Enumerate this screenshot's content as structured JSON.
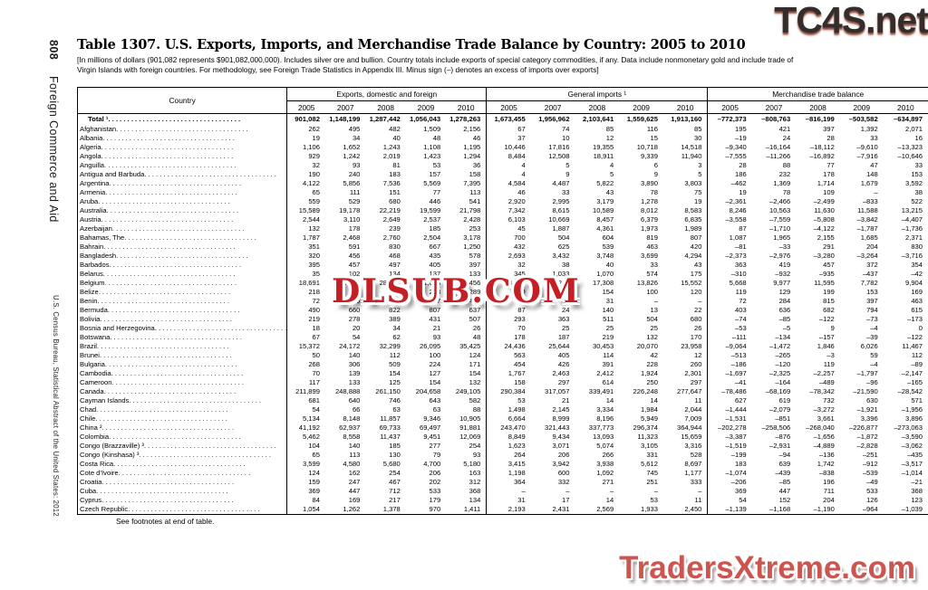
{
  "sidebar": {
    "page_number": "808",
    "section": "Foreign Commerce and Aid",
    "source": "U.S. Census Bureau, Statistical Abstract of the United States: 2012"
  },
  "title": "Table 1307. U.S. Exports, Imports, and Merchandise Trade Balance by Country: 2005 to 2010",
  "note_line1": "[In millions of dollars (901,082 represents $901,082,000,000). Includes silver ore and bullion. Country totals include exports of special category commodities, if any. Data include nonmonetary gold and include trade of",
  "note_line2": "Virgin Islands with foreign countries. For methodology, see Foreign Trade Statistics in Appendix III. Minus sign (–) denotes an excess of imports over exports]",
  "footer": "See footnotes at end of table.",
  "watermarks": {
    "top": "TC4S.net",
    "middle": "DLSUB.COM",
    "bottom": "TradersXtreme.com",
    "top_color": "#332d2b",
    "middle_color": "#c41f25",
    "bottom_color": "#cd554f"
  },
  "table": {
    "country_header": "Country",
    "groups": [
      "Exports, domestic and foreign",
      "General imports ¹",
      "Merchandise trade balance"
    ],
    "years": [
      "2005",
      "2007",
      "2008",
      "2009",
      "2010"
    ],
    "rows": [
      {
        "c": "Total ¹",
        "b": true,
        "e": [
          "901,082",
          "1,148,199",
          "1,287,442",
          "1,056,043",
          "1,278,263"
        ],
        "i": [
          "1,673,455",
          "1,956,962",
          "2,103,641",
          "1,559,625",
          "1,913,160"
        ],
        "m": [
          "–772,373",
          "–808,763",
          "–816,199",
          "–503,582",
          "–634,897"
        ]
      },
      {
        "c": "Afghanistan",
        "e": [
          "262",
          "495",
          "482",
          "1,509",
          "2,156"
        ],
        "i": [
          "67",
          "74",
          "85",
          "116",
          "85"
        ],
        "m": [
          "195",
          "421",
          "397",
          "1,392",
          "2,071"
        ]
      },
      {
        "c": "Albania",
        "e": [
          "19",
          "34",
          "40",
          "48",
          "46"
        ],
        "i": [
          "37",
          "10",
          "12",
          "15",
          "30"
        ],
        "m": [
          "–19",
          "24",
          "28",
          "33",
          "16"
        ]
      },
      {
        "c": "Algeria",
        "e": [
          "1,106",
          "1,652",
          "1,243",
          "1,108",
          "1,195"
        ],
        "i": [
          "10,446",
          "17,816",
          "19,355",
          "10,718",
          "14,518"
        ],
        "m": [
          "–9,340",
          "–16,164",
          "–18,112",
          "–9,610",
          "–13,323"
        ]
      },
      {
        "c": "Angola",
        "e": [
          "929",
          "1,242",
          "2,019",
          "1,423",
          "1,294"
        ],
        "i": [
          "8,484",
          "12,508",
          "18,911",
          "9,339",
          "11,940"
        ],
        "m": [
          "–7,555",
          "–11,266",
          "–16,892",
          "–7,916",
          "–10,646"
        ]
      },
      {
        "c": "Anguilla",
        "e": [
          "32",
          "93",
          "81",
          "53",
          "36"
        ],
        "i": [
          "4",
          "5",
          "4",
          "6",
          "3"
        ],
        "m": [
          "28",
          "88",
          "77",
          "47",
          "33"
        ]
      },
      {
        "c": "Antigua and Barbuda",
        "e": [
          "190",
          "240",
          "183",
          "157",
          "158"
        ],
        "i": [
          "4",
          "9",
          "5",
          "9",
          "5"
        ],
        "m": [
          "186",
          "232",
          "178",
          "148",
          "153"
        ]
      },
      {
        "c": "Argentina",
        "e": [
          "4,122",
          "5,856",
          "7,536",
          "5,569",
          "7,395"
        ],
        "i": [
          "4,584",
          "4,487",
          "5,822",
          "3,890",
          "3,803"
        ],
        "m": [
          "–462",
          "1,369",
          "1,714",
          "1,679",
          "3,592"
        ]
      },
      {
        "c": "Armenia",
        "e": [
          "65",
          "111",
          "151",
          "77",
          "113"
        ],
        "i": [
          "46",
          "33",
          "43",
          "78",
          "75"
        ],
        "m": [
          "19",
          "78",
          "109",
          "–",
          "38"
        ]
      },
      {
        "c": "Aruba",
        "e": [
          "559",
          "529",
          "680",
          "446",
          "541"
        ],
        "i": [
          "2,920",
          "2,995",
          "3,179",
          "1,278",
          "19"
        ],
        "m": [
          "–2,361",
          "–2,466",
          "–2,499",
          "–833",
          "522"
        ]
      },
      {
        "c": "Australia",
        "e": [
          "15,589",
          "19,178",
          "22,219",
          "19,599",
          "21,798"
        ],
        "i": [
          "7,342",
          "8,615",
          "10,589",
          "8,012",
          "8,583"
        ],
        "m": [
          "8,246",
          "10,563",
          "11,630",
          "11,588",
          "13,215"
        ]
      },
      {
        "c": "Austria",
        "e": [
          "2,544",
          "3,110",
          "2,649",
          "2,537",
          "2,428"
        ],
        "i": [
          "6,103",
          "10,669",
          "8,457",
          "6,379",
          "6,835"
        ],
        "m": [
          "–3,558",
          "–7,559",
          "–5,808",
          "–3,842",
          "–4,407"
        ]
      },
      {
        "c": "Azerbaijan",
        "e": [
          "132",
          "178",
          "239",
          "185",
          "253"
        ],
        "i": [
          "45",
          "1,887",
          "4,361",
          "1,973",
          "1,989"
        ],
        "m": [
          "87",
          "–1,710",
          "–4,122",
          "–1,787",
          "–1,736"
        ]
      },
      {
        "c": "Bahamas, The",
        "e": [
          "1,787",
          "2,468",
          "2,760",
          "2,504",
          "3,178"
        ],
        "i": [
          "700",
          "504",
          "604",
          "819",
          "807"
        ],
        "m": [
          "1,087",
          "1,965",
          "2,155",
          "1,685",
          "2,371"
        ]
      },
      {
        "c": "Bahrain",
        "e": [
          "351",
          "591",
          "830",
          "667",
          "1,250"
        ],
        "i": [
          "432",
          "625",
          "539",
          "463",
          "420"
        ],
        "m": [
          "–81",
          "–33",
          "291",
          "204",
          "830"
        ]
      },
      {
        "c": "Bangladesh",
        "e": [
          "320",
          "456",
          "468",
          "435",
          "578"
        ],
        "i": [
          "2,693",
          "3,432",
          "3,748",
          "3,699",
          "4,294"
        ],
        "m": [
          "–2,373",
          "–2,976",
          "–3,280",
          "–3,264",
          "–3,716"
        ]
      },
      {
        "c": "Barbados",
        "e": [
          "395",
          "457",
          "497",
          "405",
          "397"
        ],
        "i": [
          "32",
          "38",
          "40",
          "33",
          "43"
        ],
        "m": [
          "363",
          "419",
          "457",
          "372",
          "354"
        ]
      },
      {
        "c": "Belarus",
        "e": [
          "35",
          "102",
          "134",
          "137",
          "133"
        ],
        "i": [
          "345",
          "1,033",
          "1,070",
          "574",
          "175"
        ],
        "m": [
          "–310",
          "–932",
          "–935",
          "–437",
          "–42"
        ]
      },
      {
        "c": "Belgium",
        "e": [
          "18,691",
          "25,259",
          "28,903",
          "21,608",
          "25,456"
        ],
        "i": [
          "13,023",
          "15,282",
          "17,308",
          "13,826",
          "15,552"
        ],
        "m": [
          "5,668",
          "9,977",
          "11,595",
          "7,782",
          "9,904"
        ]
      },
      {
        "c": "Belize",
        "e": [
          "218",
          "234",
          "353",
          "253",
          "289"
        ],
        "i": [
          "99",
          "105",
          "154",
          "100",
          "120"
        ],
        "m": [
          "119",
          "129",
          "199",
          "153",
          "169"
        ]
      },
      {
        "c": "Benin",
        "e": [
          "72",
          "289",
          "846",
          "397",
          "463"
        ],
        "i": [
          "–",
          "5",
          "31",
          "–",
          "–"
        ],
        "m": [
          "72",
          "284",
          "815",
          "397",
          "463"
        ]
      },
      {
        "c": "Bermuda",
        "e": [
          "490",
          "660",
          "822",
          "807",
          "637"
        ],
        "i": [
          "87",
          "24",
          "140",
          "13",
          "22"
        ],
        "m": [
          "403",
          "636",
          "682",
          "794",
          "615"
        ]
      },
      {
        "c": "Bolivia",
        "e": [
          "219",
          "278",
          "389",
          "431",
          "507"
        ],
        "i": [
          "293",
          "363",
          "511",
          "504",
          "680"
        ],
        "m": [
          "–74",
          "–85",
          "–122",
          "–73",
          "–173"
        ]
      },
      {
        "c": "Bosnia and Herzegovina",
        "e": [
          "18",
          "20",
          "34",
          "21",
          "26"
        ],
        "i": [
          "70",
          "25",
          "25",
          "25",
          "26"
        ],
        "m": [
          "–53",
          "–5",
          "9",
          "–4",
          "0"
        ]
      },
      {
        "c": "Botswana",
        "e": [
          "67",
          "54",
          "62",
          "93",
          "48"
        ],
        "i": [
          "178",
          "187",
          "219",
          "132",
          "170"
        ],
        "m": [
          "–111",
          "–134",
          "–157",
          "–39",
          "–122"
        ]
      },
      {
        "c": "Brazil",
        "e": [
          "15,372",
          "24,172",
          "32,299",
          "26,095",
          "35,425"
        ],
        "i": [
          "24,436",
          "25,644",
          "30,453",
          "20,070",
          "23,958"
        ],
        "m": [
          "–9,064",
          "–1,472",
          "1,846",
          "6,026",
          "11,467"
        ]
      },
      {
        "c": "Brunei",
        "e": [
          "50",
          "140",
          "112",
          "100",
          "124"
        ],
        "i": [
          "563",
          "405",
          "114",
          "42",
          "12"
        ],
        "m": [
          "–513",
          "–265",
          "–3",
          "59",
          "112"
        ]
      },
      {
        "c": "Bulgaria",
        "e": [
          "268",
          "306",
          "509",
          "224",
          "171"
        ],
        "i": [
          "454",
          "426",
          "391",
          "228",
          "260"
        ],
        "m": [
          "–186",
          "–120",
          "119",
          "–4",
          "–89"
        ]
      },
      {
        "c": "Cambodia",
        "e": [
          "70",
          "139",
          "154",
          "127",
          "154"
        ],
        "i": [
          "1,767",
          "2,463",
          "2,412",
          "1,924",
          "2,301"
        ],
        "m": [
          "–1,697",
          "–2,325",
          "–2,257",
          "–1,797",
          "–2,147"
        ]
      },
      {
        "c": "Cameroon",
        "e": [
          "117",
          "133",
          "125",
          "154",
          "132"
        ],
        "i": [
          "158",
          "297",
          "614",
          "250",
          "297"
        ],
        "m": [
          "–41",
          "–164",
          "–489",
          "–96",
          "–165"
        ]
      },
      {
        "c": "Canada",
        "e": [
          "211,899",
          "248,888",
          "261,150",
          "204,658",
          "249,105"
        ],
        "i": [
          "290,384",
          "317,057",
          "339,491",
          "226,248",
          "277,647"
        ],
        "m": [
          "–78,486",
          "–68,169",
          "–78,342",
          "–21,590",
          "–28,542"
        ]
      },
      {
        "c": "Cayman Islands",
        "e": [
          "681",
          "640",
          "746",
          "643",
          "582"
        ],
        "i": [
          "53",
          "21",
          "14",
          "14",
          "11"
        ],
        "m": [
          "627",
          "619",
          "732",
          "630",
          "571"
        ]
      },
      {
        "c": "Chad",
        "e": [
          "54",
          "66",
          "63",
          "63",
          "88"
        ],
        "i": [
          "1,498",
          "2,145",
          "3,334",
          "1,984",
          "2,044"
        ],
        "m": [
          "–1,444",
          "–2,079",
          "–3,272",
          "–1,921",
          "–1,956"
        ]
      },
      {
        "c": "Chile",
        "e": [
          "5,134",
          "8,148",
          "11,857",
          "9,346",
          "10,905"
        ],
        "i": [
          "6,664",
          "8,999",
          "8,196",
          "5,949",
          "7,009"
        ],
        "m": [
          "–1,531",
          "–851",
          "3,661",
          "3,396",
          "3,896"
        ]
      },
      {
        "c": "China ²",
        "e": [
          "41,192",
          "62,937",
          "69,733",
          "69,497",
          "91,881"
        ],
        "i": [
          "243,470",
          "321,443",
          "337,773",
          "296,374",
          "364,944"
        ],
        "m": [
          "–202,278",
          "–258,506",
          "–268,040",
          "–226,877",
          "–273,063"
        ]
      },
      {
        "c": "Colombia",
        "e": [
          "5,462",
          "8,558",
          "11,437",
          "9,451",
          "12,069"
        ],
        "i": [
          "8,849",
          "9,434",
          "13,093",
          "11,323",
          "15,659"
        ],
        "m": [
          "–3,387",
          "–876",
          "–1,656",
          "–1,872",
          "–3,590"
        ]
      },
      {
        "c": "Congo (Brazzaville) ³",
        "e": [
          "104",
          "140",
          "185",
          "277",
          "254"
        ],
        "i": [
          "1,623",
          "3,071",
          "5,074",
          "3,105",
          "3,316"
        ],
        "m": [
          "–1,519",
          "–2,931",
          "–4,889",
          "–2,828",
          "–3,062"
        ]
      },
      {
        "c": "Congo (Kinshasa) ³",
        "e": [
          "65",
          "113",
          "130",
          "79",
          "93"
        ],
        "i": [
          "264",
          "206",
          "266",
          "331",
          "528"
        ],
        "m": [
          "–199",
          "–94",
          "–136",
          "–251",
          "–435"
        ]
      },
      {
        "c": "Costa Rica",
        "e": [
          "3,599",
          "4,580",
          "5,680",
          "4,700",
          "5,180"
        ],
        "i": [
          "3,415",
          "3,942",
          "3,938",
          "5,612",
          "8,697"
        ],
        "m": [
          "183",
          "639",
          "1,742",
          "–912",
          "–3,517"
        ]
      },
      {
        "c": "Cote d’Ivoire",
        "e": [
          "124",
          "162",
          "254",
          "206",
          "163"
        ],
        "i": [
          "1,198",
          "600",
          "1,092",
          "745",
          "1,177"
        ],
        "m": [
          "–1,074",
          "–439",
          "–838",
          "–539",
          "–1,014"
        ]
      },
      {
        "c": "Croatia",
        "e": [
          "159",
          "247",
          "467",
          "202",
          "312"
        ],
        "i": [
          "364",
          "332",
          "271",
          "251",
          "333"
        ],
        "m": [
          "–206",
          "–85",
          "196",
          "–49",
          "–21"
        ]
      },
      {
        "c": "Cuba",
        "e": [
          "369",
          "447",
          "712",
          "533",
          "368"
        ],
        "i": [
          "–",
          "–",
          "–",
          "–",
          "–"
        ],
        "m": [
          "369",
          "447",
          "711",
          "533",
          "368"
        ]
      },
      {
        "c": "Cyprus",
        "e": [
          "84",
          "169",
          "217",
          "179",
          "134"
        ],
        "i": [
          "31",
          "17",
          "14",
          "53",
          "11"
        ],
        "m": [
          "54",
          "152",
          "204",
          "126",
          "123"
        ]
      },
      {
        "c": "Czech Republic",
        "e": [
          "1,054",
          "1,262",
          "1,378",
          "970",
          "1,411"
        ],
        "i": [
          "2,193",
          "2,431",
          "2,569",
          "1,933",
          "2,450"
        ],
        "m": [
          "–1,139",
          "–1,168",
          "–1,190",
          "–964",
          "–1,039"
        ]
      }
    ]
  }
}
